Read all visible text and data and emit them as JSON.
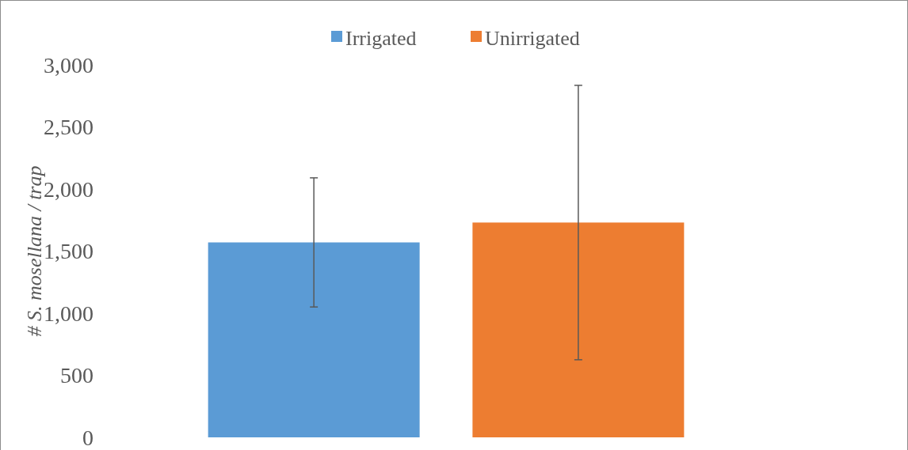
{
  "chart_data": {
    "type": "bar",
    "ylabel": "# S. mosellana / trap",
    "categories": [
      null
    ],
    "series": [
      {
        "name": "Irrigated",
        "color": "#5b9bd5",
        "values": [
          1570
        ],
        "errors": [
          520
        ]
      },
      {
        "name": "Unirrigated",
        "color": "#ed7d31",
        "values": [
          1730
        ],
        "errors": [
          1105
        ]
      }
    ],
    "ylim": [
      0,
      3000
    ],
    "yticks": [
      {
        "value": 0,
        "label": "0"
      },
      {
        "value": 500,
        "label": "500"
      },
      {
        "value": 1000,
        "label": "1,000"
      },
      {
        "value": 1500,
        "label": "1,500"
      },
      {
        "value": 2000,
        "label": "2,000"
      },
      {
        "value": 2500,
        "label": "2,500"
      },
      {
        "value": 3000,
        "label": "3,000"
      }
    ],
    "grid": false,
    "legend": "top"
  }
}
